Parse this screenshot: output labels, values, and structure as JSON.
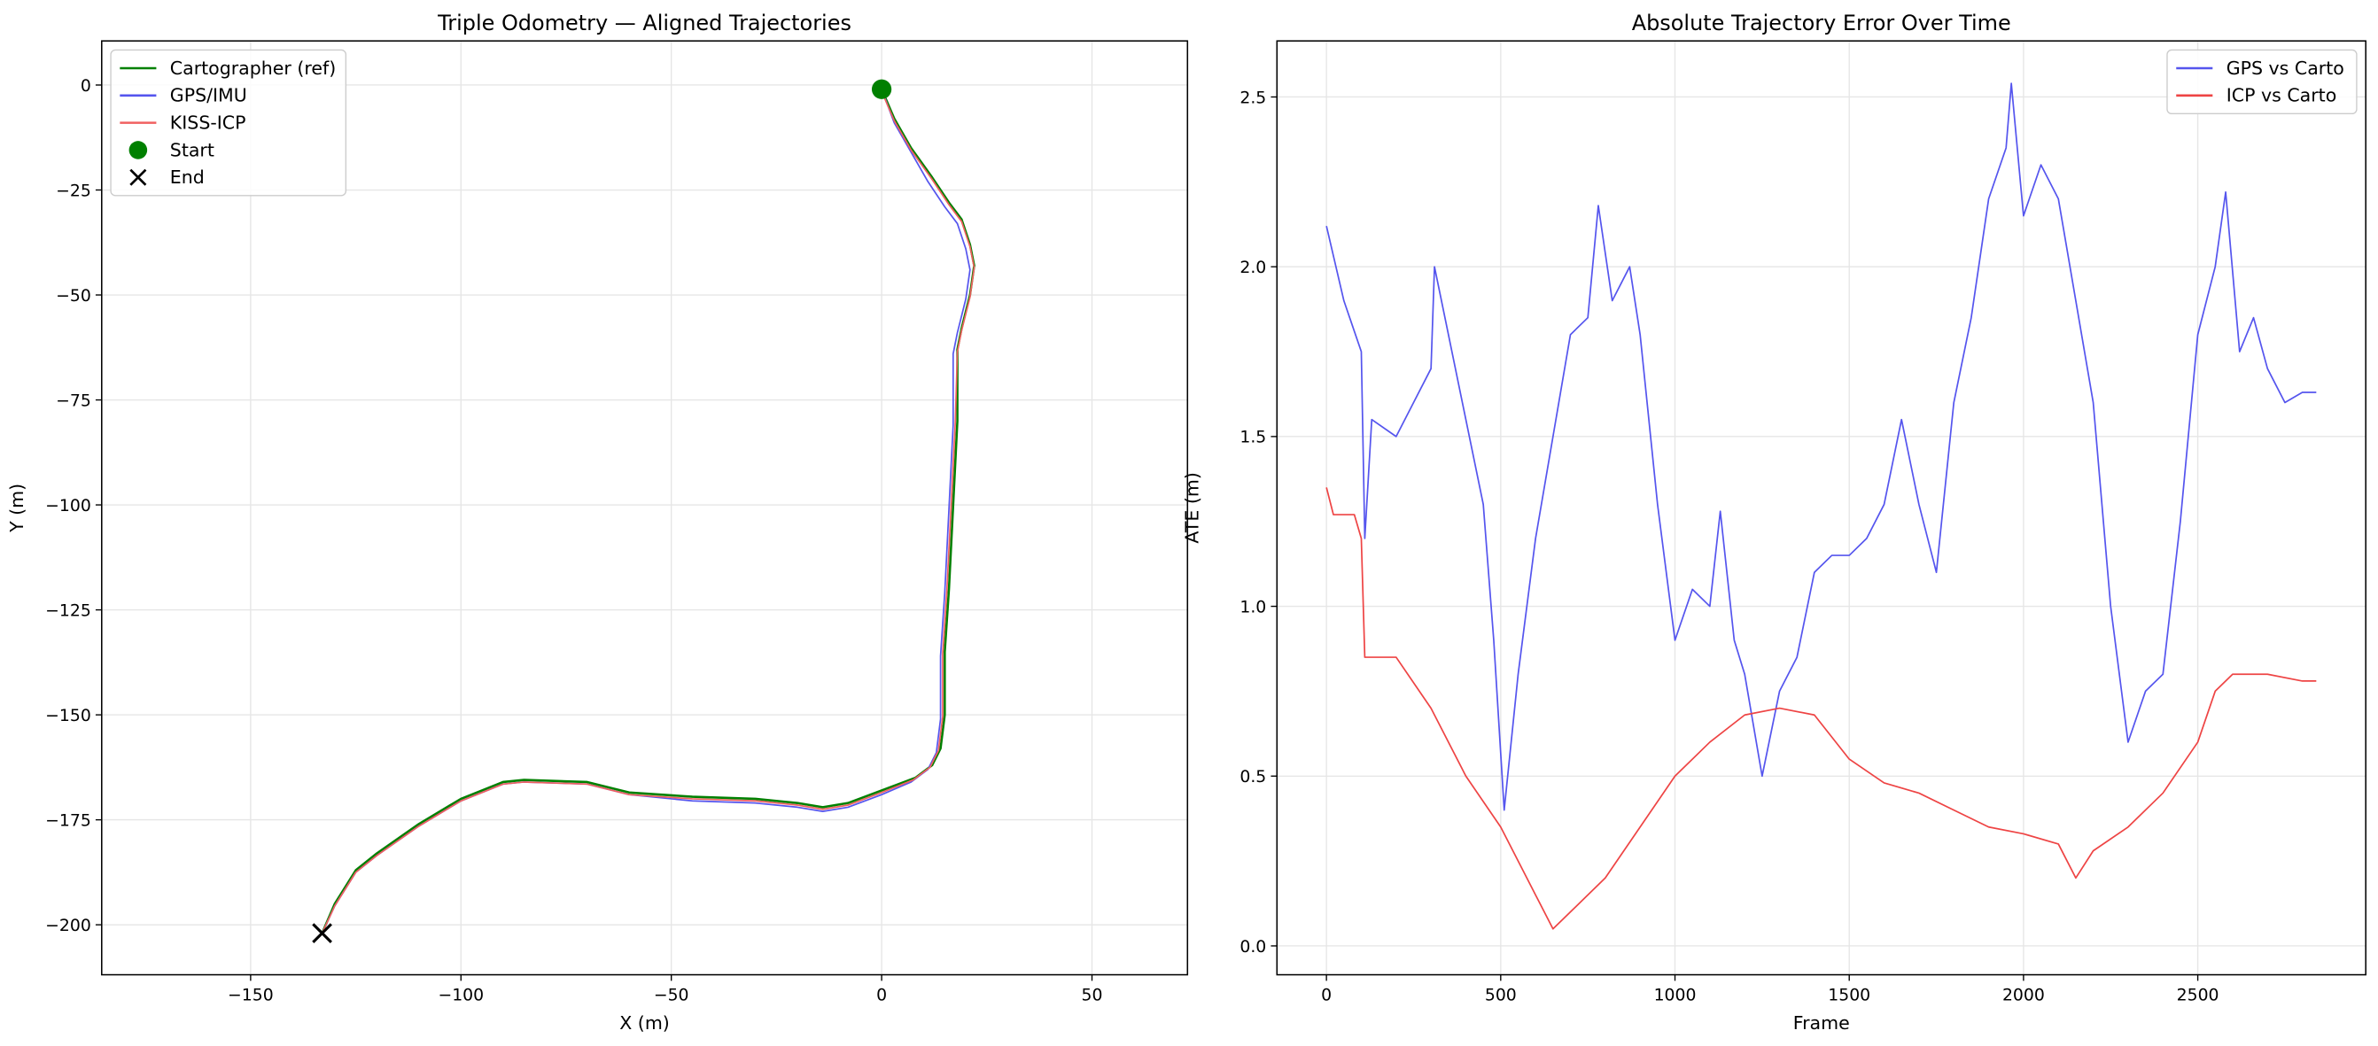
{
  "chart_data": [
    {
      "type": "line",
      "title": "Triple Odometry — Aligned Trajectories",
      "xlabel": "X (m)",
      "ylabel": "Y (m)",
      "xlim": [
        -185.4,
        72.7
      ],
      "ylim": [
        -211.9,
        10.5
      ],
      "xticks": [
        {
          "value": -150,
          "label": "−150"
        },
        {
          "value": -100,
          "label": "−100"
        },
        {
          "value": -50,
          "label": "−50"
        },
        0,
        50
      ],
      "yticks": [
        0,
        {
          "value": -25,
          "label": "−25"
        },
        {
          "value": -50,
          "label": "−50"
        },
        {
          "value": -75,
          "label": "−75"
        },
        {
          "value": -100,
          "label": "−100"
        },
        {
          "value": -125,
          "label": "−125"
        },
        {
          "value": -150,
          "label": "−150"
        },
        {
          "value": -175,
          "label": "−175"
        },
        {
          "value": -200,
          "label": "−200"
        }
      ],
      "grid": true,
      "legend": "upper left",
      "series": [
        {
          "name": "Cartographer (ref)",
          "color": "#008000",
          "x": [
            0,
            3,
            7,
            12,
            16,
            19,
            21,
            22,
            21,
            19,
            18,
            18,
            17,
            16,
            15,
            15,
            14,
            12,
            8,
            0,
            -8,
            -14,
            -20,
            -30,
            -45,
            -60,
            -70,
            -85,
            -90,
            -100,
            -110,
            -120,
            -125,
            -130,
            -133
          ],
          "values": [
            -1,
            -8,
            -15,
            -22,
            -28,
            -32,
            -38,
            -43,
            -50,
            -58,
            -63,
            -80,
            -100,
            -120,
            -135,
            -150,
            -158,
            -162,
            -165,
            -168,
            -171,
            -172,
            -171,
            -170,
            -169.5,
            -168.5,
            -166,
            -165.5,
            -166,
            -170,
            -176,
            -183,
            -187,
            -195,
            -202
          ]
        },
        {
          "name": "GPS/IMU",
          "color": "#5555ee",
          "x": [
            0,
            3,
            7,
            11,
            15,
            18,
            20,
            21,
            20,
            18,
            17,
            17,
            16,
            15,
            14,
            14,
            13,
            11,
            7,
            0,
            -8,
            -14,
            -20,
            -30,
            -45,
            -60,
            -70,
            -85,
            -90,
            -100,
            -110,
            -120,
            -125,
            -130,
            -133
          ],
          "values": [
            -1,
            -9,
            -16,
            -23,
            -29,
            -33,
            -39,
            -44,
            -51,
            -59,
            -64,
            -81,
            -101,
            -121,
            -136,
            -151,
            -159,
            -163,
            -166,
            -169,
            -172,
            -173,
            -172,
            -171,
            -170.5,
            -169,
            -166.5,
            -166,
            -166.5,
            -170.5,
            -176.5,
            -183.5,
            -187.5,
            -195.5,
            -202
          ]
        },
        {
          "name": "KISS-ICP",
          "color": "#f06060",
          "x": [
            0,
            3,
            7,
            12,
            16,
            19,
            21,
            22,
            21,
            19,
            18,
            17.5,
            16.5,
            15.5,
            14.5,
            14.5,
            13.5,
            11.5,
            7.5,
            0,
            -8,
            -14,
            -20,
            -30,
            -45,
            -60,
            -70,
            -85,
            -90,
            -100,
            -110,
            -120,
            -125,
            -130,
            -133
          ],
          "values": [
            -1.5,
            -8.5,
            -15.5,
            -22.5,
            -28.5,
            -32.5,
            -38.5,
            -43.5,
            -50.5,
            -58.5,
            -63.5,
            -80.5,
            -100.5,
            -120.5,
            -135.5,
            -150.5,
            -158.5,
            -162.5,
            -165.5,
            -168.5,
            -171.5,
            -172.5,
            -171.5,
            -170.5,
            -170,
            -169,
            -166.5,
            -166,
            -166.5,
            -170.5,
            -176.5,
            -183.5,
            -187.5,
            -195.5,
            -202
          ]
        },
        {
          "name": "Start",
          "color": "#008000",
          "marker": "o",
          "x": [
            0
          ],
          "values": [
            -1
          ]
        },
        {
          "name": "End",
          "color": "#000000",
          "marker": "x",
          "x": [
            -133
          ],
          "values": [
            -202
          ]
        }
      ]
    },
    {
      "type": "line",
      "title": "Absolute Trajectory Error Over Time",
      "xlabel": "Frame",
      "ylabel": "ATE (m)",
      "xlim": [
        -142,
        2982
      ],
      "ylim": [
        -0.085,
        2.665
      ],
      "xticks": [
        0,
        500,
        1000,
        1500,
        2000,
        2500
      ],
      "yticks": [
        {
          "value": 0,
          "label": "0.0"
        },
        0.5,
        {
          "value": 1,
          "label": "1.0"
        },
        1.5,
        {
          "value": 2,
          "label": "2.0"
        },
        2.5
      ],
      "grid": true,
      "legend": "upper right",
      "series": [
        {
          "name": "GPS vs Carto",
          "color": "#5555ee",
          "x": [
            0,
            50,
            100,
            110,
            130,
            200,
            250,
            300,
            310,
            350,
            400,
            450,
            480,
            510,
            550,
            600,
            650,
            700,
            750,
            780,
            820,
            870,
            900,
            950,
            1000,
            1050,
            1100,
            1130,
            1170,
            1200,
            1250,
            1300,
            1350,
            1400,
            1450,
            1500,
            1550,
            1600,
            1650,
            1700,
            1750,
            1800,
            1850,
            1900,
            1950,
            1965,
            2000,
            2050,
            2100,
            2150,
            2200,
            2250,
            2300,
            2350,
            2400,
            2450,
            2500,
            2550,
            2580,
            2620,
            2660,
            2700,
            2750,
            2800,
            2840
          ],
          "values": [
            2.12,
            1.9,
            1.75,
            1.2,
            1.55,
            1.5,
            1.6,
            1.7,
            2.0,
            1.8,
            1.55,
            1.3,
            0.9,
            0.4,
            0.8,
            1.2,
            1.5,
            1.8,
            1.85,
            2.18,
            1.9,
            2.0,
            1.8,
            1.3,
            0.9,
            1.05,
            1.0,
            1.28,
            0.9,
            0.8,
            0.5,
            0.75,
            0.85,
            1.1,
            1.15,
            1.15,
            1.2,
            1.3,
            1.55,
            1.3,
            1.1,
            1.6,
            1.85,
            2.2,
            2.35,
            2.54,
            2.15,
            2.3,
            2.2,
            1.9,
            1.6,
            1.0,
            0.6,
            0.75,
            0.8,
            1.25,
            1.8,
            2.0,
            2.22,
            1.75,
            1.85,
            1.7,
            1.6,
            1.63,
            1.63
          ]
        },
        {
          "name": "ICP vs Carto",
          "color": "#ee4444",
          "x": [
            0,
            20,
            80,
            100,
            110,
            200,
            300,
            400,
            500,
            600,
            650,
            700,
            800,
            900,
            1000,
            1100,
            1200,
            1300,
            1400,
            1500,
            1600,
            1700,
            1800,
            1900,
            2000,
            2100,
            2150,
            2200,
            2300,
            2400,
            2500,
            2550,
            2600,
            2700,
            2800,
            2840
          ],
          "values": [
            1.35,
            1.27,
            1.27,
            1.2,
            0.85,
            0.85,
            0.7,
            0.5,
            0.35,
            0.15,
            0.05,
            0.1,
            0.2,
            0.35,
            0.5,
            0.6,
            0.68,
            0.7,
            0.68,
            0.55,
            0.48,
            0.45,
            0.4,
            0.35,
            0.33,
            0.3,
            0.2,
            0.28,
            0.35,
            0.45,
            0.6,
            0.75,
            0.8,
            0.8,
            0.78,
            0.78
          ]
        }
      ]
    }
  ]
}
